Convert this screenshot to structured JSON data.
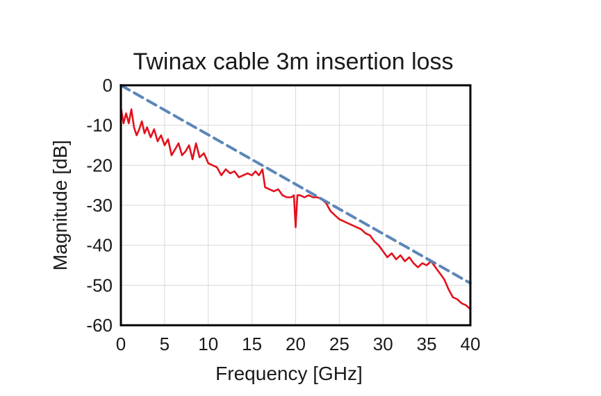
{
  "chart_data": {
    "type": "line",
    "title": "Twinax cable 3m insertion loss",
    "xlabel": "Frequency [GHz]",
    "ylabel": "Magnitude [dB]",
    "xlim": [
      0,
      40
    ],
    "ylim": [
      -60,
      0
    ],
    "x_ticks": [
      "0",
      "5",
      "10",
      "15",
      "20",
      "25",
      "30",
      "35",
      "40"
    ],
    "y_ticks": [
      "0",
      "-10",
      "-20",
      "-30",
      "-40",
      "-50",
      "-60"
    ],
    "grid": true,
    "colors": {
      "measured": "#e3101b",
      "fit": "#5b86b8"
    },
    "series": [
      {
        "style": "solid",
        "x": [
          0,
          0.3,
          0.6,
          0.9,
          1.2,
          1.5,
          1.8,
          2.1,
          2.4,
          2.7,
          3.0,
          3.4,
          3.8,
          4.2,
          4.6,
          5.0,
          5.4,
          5.8,
          6.2,
          6.6,
          7.0,
          7.4,
          7.8,
          8.2,
          8.6,
          9.0,
          9.5,
          10.0,
          10.5,
          11.0,
          11.5,
          12.0,
          12.5,
          13.0,
          13.5,
          14.0,
          14.5,
          15.0,
          15.4,
          15.8,
          16.2,
          16.5,
          17.0,
          17.5,
          18.0,
          18.5,
          19.0,
          19.5,
          19.8,
          20.0,
          20.2,
          20.5,
          21.0,
          21.5,
          22.0,
          22.5,
          23.0,
          23.5,
          24.0,
          24.5,
          25.0,
          25.5,
          26.0,
          26.5,
          27.0,
          27.5,
          28.0,
          28.5,
          29.0,
          29.5,
          30.0,
          30.5,
          31.0,
          31.5,
          32.0,
          32.5,
          33.0,
          33.5,
          34.0,
          34.5,
          35.0,
          35.5,
          36.0,
          36.5,
          37.0,
          37.5,
          38.0,
          38.5,
          39.0,
          39.5,
          40.0
        ],
        "y": [
          -5.5,
          -9.5,
          -7.0,
          -9.5,
          -6.0,
          -10.5,
          -12.5,
          -11.0,
          -9.0,
          -12.0,
          -10.5,
          -13.0,
          -11.0,
          -14.0,
          -12.5,
          -15.0,
          -13.5,
          -17.5,
          -16.0,
          -14.5,
          -17.5,
          -16.5,
          -15.0,
          -18.5,
          -14.5,
          -18.0,
          -17.0,
          -19.5,
          -20.0,
          -20.5,
          -22.5,
          -21.0,
          -22.0,
          -21.5,
          -23.0,
          -22.5,
          -22.0,
          -22.5,
          -21.5,
          -22.5,
          -21.0,
          -25.5,
          -26.0,
          -26.5,
          -26.0,
          -27.5,
          -28.0,
          -28.0,
          -27.5,
          -35.5,
          -27.5,
          -27.5,
          -28.0,
          -27.5,
          -28.0,
          -28.0,
          -28.5,
          -29.5,
          -31.5,
          -32.5,
          -33.5,
          -34.0,
          -34.5,
          -35.0,
          -35.5,
          -36.0,
          -37.0,
          -37.5,
          -39.0,
          -40.0,
          -41.5,
          -43.0,
          -42.0,
          -43.5,
          -42.5,
          -44.0,
          -43.0,
          -44.5,
          -45.5,
          -44.5,
          -45.0,
          -44.0,
          -45.5,
          -47.0,
          -48.5,
          -51.0,
          -53.0,
          -53.5,
          -54.5,
          -55.0,
          -56.0
        ]
      },
      {
        "style": "dashed",
        "x": [
          0,
          40
        ],
        "y": [
          0,
          -49.5
        ]
      }
    ]
  }
}
